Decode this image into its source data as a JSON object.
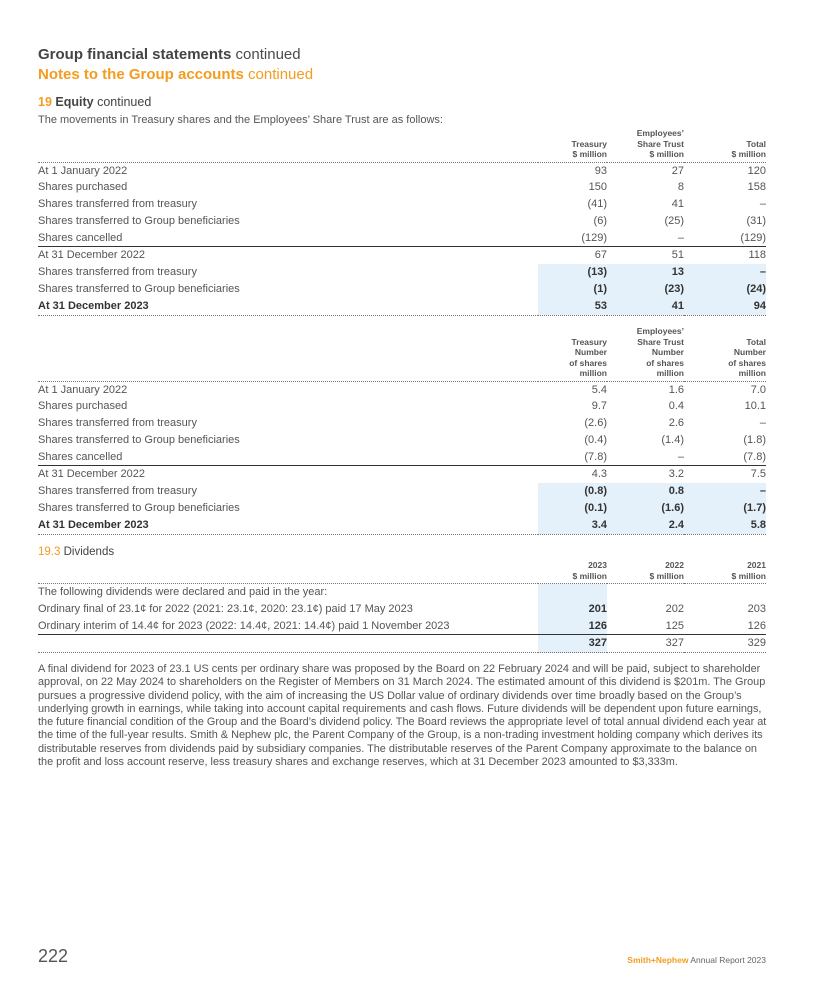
{
  "header": {
    "title_bold": "Group financial statements",
    "title_suffix": "continued",
    "subtitle_bold": "Notes to the Group accounts",
    "subtitle_suffix": "continued"
  },
  "section": {
    "number": "19",
    "title": "Equity",
    "suffix": "continued",
    "intro": "The movements in Treasury shares and the Employees’ Share Trust are as follows:"
  },
  "table1": {
    "headers": [
      [
        "Treasury",
        "$ million"
      ],
      [
        "Employees’",
        "Share Trust",
        "$ million"
      ],
      [
        "Total",
        "$ million"
      ]
    ],
    "rows": [
      {
        "label": "At 1 January 2022",
        "v": [
          "93",
          "27",
          "120"
        ]
      },
      {
        "label": "Shares purchased",
        "v": [
          "150",
          "8",
          "158"
        ]
      },
      {
        "label": "Shares transferred from treasury",
        "v": [
          "(41)",
          "41",
          "–"
        ]
      },
      {
        "label": "Shares transferred to Group beneficiaries",
        "v": [
          "(6)",
          "(25)",
          "(31)"
        ]
      },
      {
        "label": "Shares cancelled",
        "v": [
          "(129)",
          "–",
          "(129)"
        ]
      },
      {
        "label": "At 31 December 2022",
        "v": [
          "67",
          "51",
          "118"
        ]
      },
      {
        "label": "Shares transferred from treasury",
        "v": [
          "(13)",
          "13",
          "–"
        ]
      },
      {
        "label": "Shares transferred to Group beneficiaries",
        "v": [
          "(1)",
          "(23)",
          "(24)"
        ]
      },
      {
        "label": "At 31 December 2023",
        "v": [
          "53",
          "41",
          "94"
        ]
      }
    ]
  },
  "table2": {
    "headers": [
      [
        "Treasury",
        "Number",
        "of shares",
        "million"
      ],
      [
        "Employees’",
        "Share Trust",
        "Number",
        "of shares",
        "million"
      ],
      [
        "Total",
        "Number",
        "of shares",
        "million"
      ]
    ],
    "rows": [
      {
        "label": "At 1 January 2022",
        "v": [
          "5.4",
          "1.6",
          "7.0"
        ]
      },
      {
        "label": "Shares purchased",
        "v": [
          "9.7",
          "0.4",
          "10.1"
        ]
      },
      {
        "label": "Shares transferred from treasury",
        "v": [
          "(2.6)",
          "2.6",
          "–"
        ]
      },
      {
        "label": "Shares transferred to Group beneficiaries",
        "v": [
          "(0.4)",
          "(1.4)",
          "(1.8)"
        ]
      },
      {
        "label": "Shares cancelled",
        "v": [
          "(7.8)",
          "–",
          "(7.8)"
        ]
      },
      {
        "label": "At 31 December 2022",
        "v": [
          "4.3",
          "3.2",
          "7.5"
        ]
      },
      {
        "label": "Shares transferred from treasury",
        "v": [
          "(0.8)",
          "0.8",
          "–"
        ]
      },
      {
        "label": "Shares transferred to Group beneficiaries",
        "v": [
          "(0.1)",
          "(1.6)",
          "(1.7)"
        ]
      },
      {
        "label": "At 31 December 2023",
        "v": [
          "3.4",
          "2.4",
          "5.8"
        ]
      }
    ]
  },
  "dividends": {
    "number": "19.3",
    "title": "Dividends",
    "headers": [
      [
        "2023",
        "$ million"
      ],
      [
        "2022",
        "$ million"
      ],
      [
        "2021",
        "$ million"
      ]
    ],
    "rows": [
      {
        "label": "The following dividends were declared and paid in the year:",
        "v": [
          "",
          "",
          ""
        ]
      },
      {
        "label": "Ordinary final of 23.1¢ for 2022 (2021: 23.1¢, 2020: 23.1¢) paid 17 May 2023",
        "v": [
          "201",
          "202",
          "203"
        ]
      },
      {
        "label": "Ordinary interim of 14.4¢ for 2023 (2022: 14.4¢, 2021: 14.4¢) paid 1 November 2023",
        "v": [
          "126",
          "125",
          "126"
        ]
      },
      {
        "label": "",
        "v": [
          "327",
          "327",
          "329"
        ]
      }
    ],
    "paragraph": "A final dividend for 2023 of 23.1 US cents per ordinary share was proposed by the Board on 22 February 2024 and will be paid, subject to shareholder approval, on 22 May 2024 to shareholders on the Register of Members on 31 March 2024. The estimated amount of this dividend is $201m. The Group pursues a progressive dividend policy, with the aim of increasing the US Dollar value of ordinary dividends over time broadly based on the Group’s underlying growth in earnings, while taking into account capital requirements and cash flows. Future dividends will be dependent upon future earnings, the future financial condition of the Group and the Board’s dividend policy. The Board reviews the appropriate level of total annual dividend each year at the time of the full-year results. Smith & Nephew plc, the Parent Company of the Group, is a non-trading investment holding company which derives its distributable reserves from dividends paid by subsidiary companies. The distributable reserves of the Parent Company approximate to the balance on the profit and loss account reserve, less treasury shares and exchange reserves, which at 31 December 2023 amounted to $3,333m."
  },
  "footer": {
    "page": "222",
    "brand": "Smith+Nephew",
    "report": "Annual Report 2023"
  }
}
